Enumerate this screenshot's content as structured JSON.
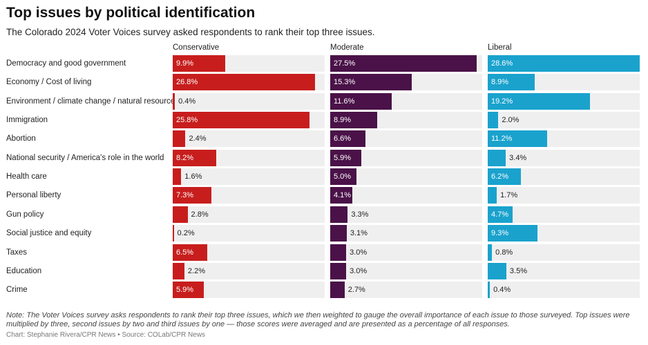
{
  "title": "Top issues by political identification",
  "subtitle": "The Colorado 2024 Voter Voices survey asked respondents to rank their top three issues.",
  "note": "Note: The Voter Voices survey asks respondents to rank their top three issues, which we then weighted to gauge the overall importance of each issue to those surveyed. Top issues were multiplied by three, second issues by two and third issues by one — those scores were averaged and are presented as a percentage of all responses.",
  "credit": "Chart: Stephanie Rivera/CPR News • Source: COLab/CPR News",
  "chart_data": {
    "type": "bar",
    "orientation": "horizontal",
    "layout": "small-multiples",
    "unit": "%",
    "xlim": [
      0,
      28.6
    ],
    "categories": [
      "Democracy and good government",
      "Economy / Cost of living",
      "Environment / climate change / natural resources",
      "Immigration",
      "Abortion",
      "National security / America's role in the world",
      "Health care",
      "Personal liberty",
      "Gun policy",
      "Social justice and equity",
      "Taxes",
      "Education",
      "Crime"
    ],
    "series": [
      {
        "name": "Conservative",
        "color": "#c71e1d",
        "values": [
          9.9,
          26.8,
          0.4,
          25.8,
          2.4,
          8.2,
          1.6,
          7.3,
          2.8,
          0.2,
          6.5,
          2.2,
          5.9
        ]
      },
      {
        "name": "Moderate",
        "color": "#4a1248",
        "values": [
          27.5,
          15.3,
          11.6,
          8.9,
          6.6,
          5.9,
          5.0,
          4.1,
          3.3,
          3.1,
          3.0,
          3.0,
          2.7
        ]
      },
      {
        "name": "Liberal",
        "color": "#1aa2cd",
        "values": [
          28.6,
          8.9,
          19.2,
          2.0,
          11.2,
          3.4,
          6.2,
          1.7,
          4.7,
          9.3,
          0.8,
          3.5,
          0.4
        ]
      }
    ]
  }
}
